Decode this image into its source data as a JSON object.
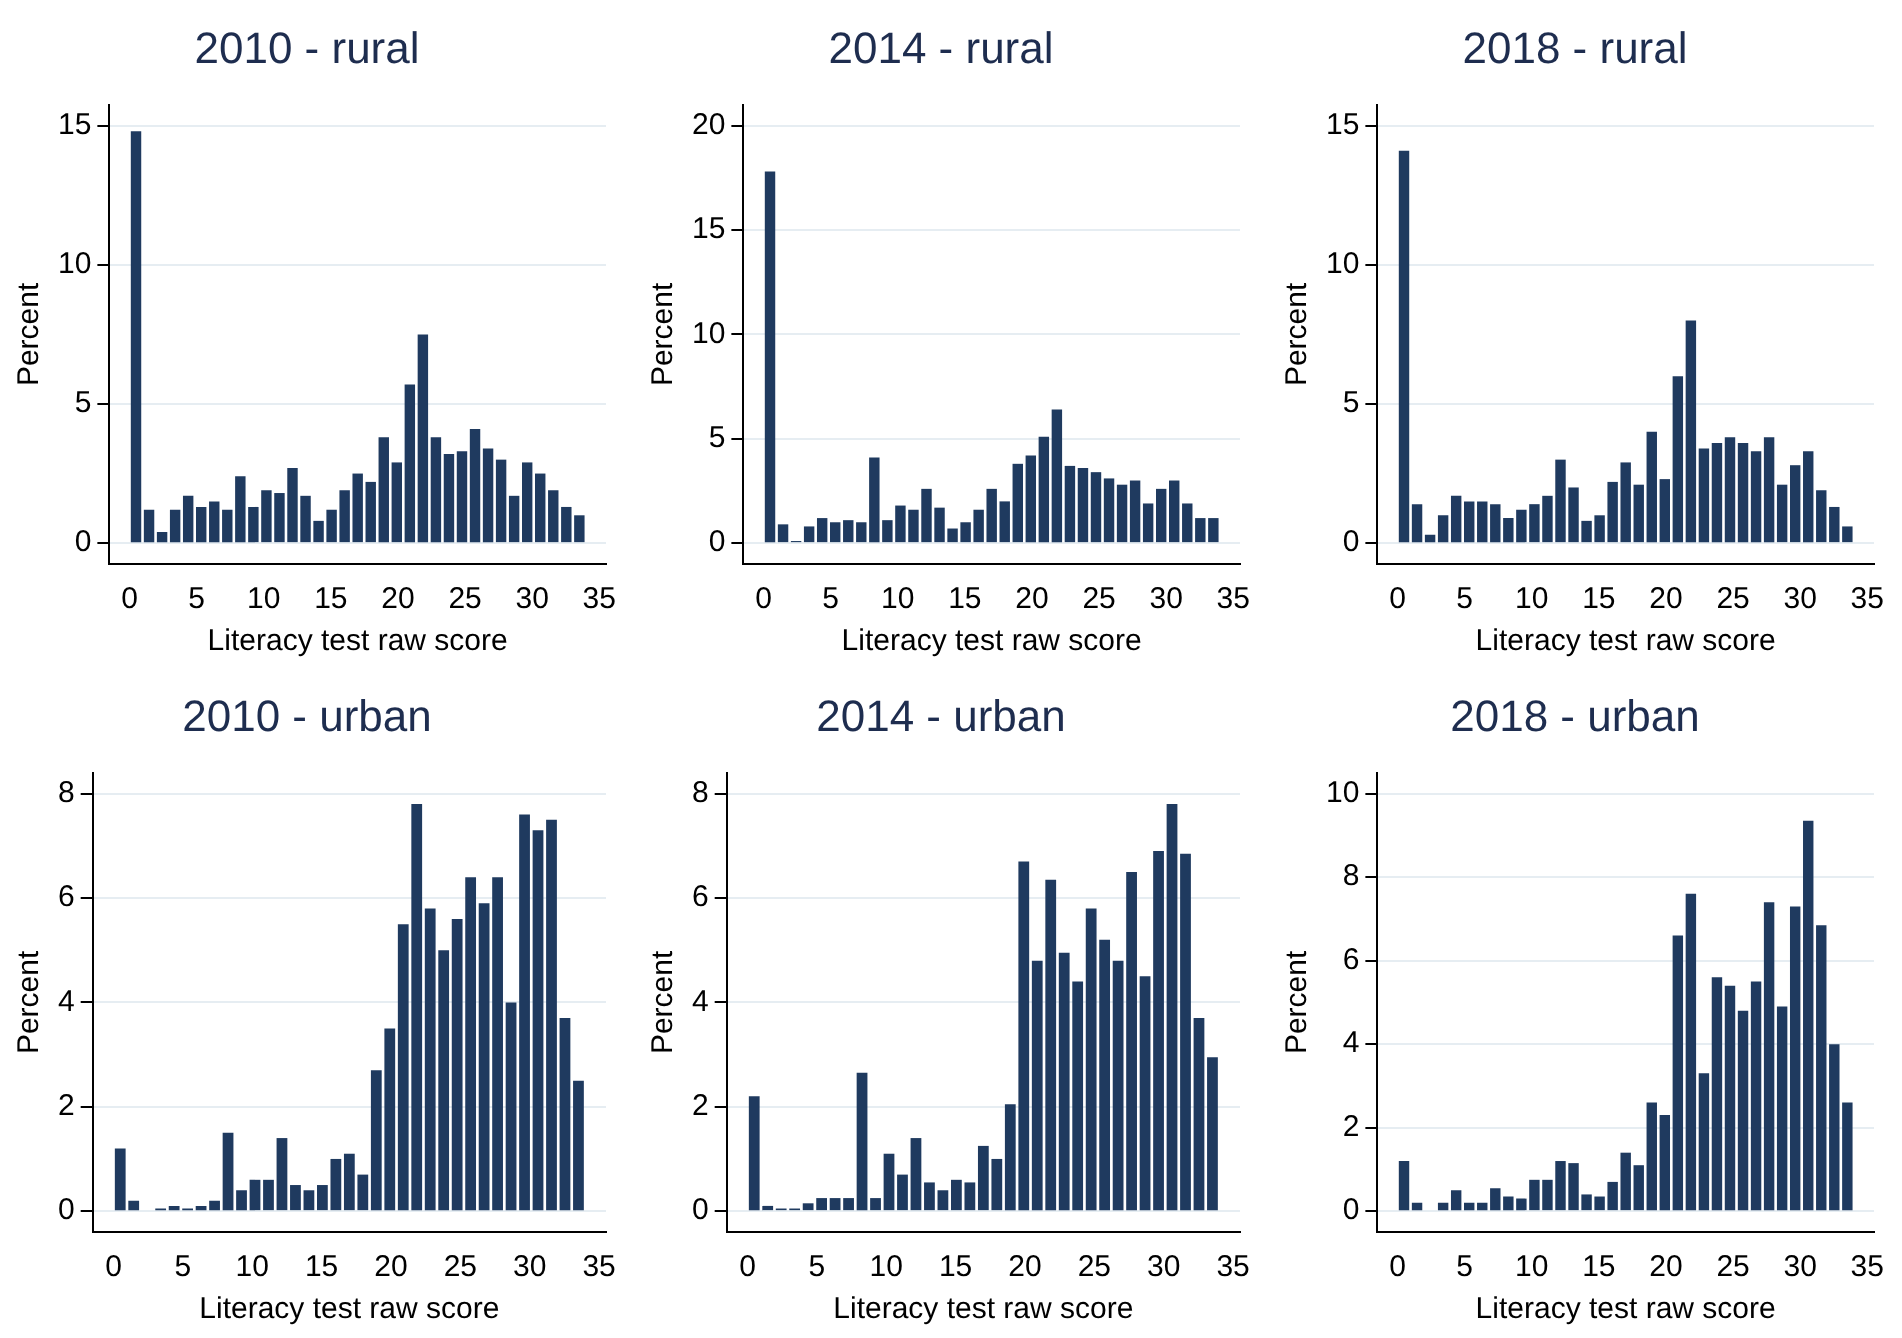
{
  "chart_data": [
    {
      "type": "histogram",
      "title": "2010 - rural",
      "xlabel": "Literacy test raw score",
      "ylabel": "Percent",
      "color": "#1f3a5f",
      "grid": "y",
      "legend": false,
      "bins": [
        0,
        0.971,
        1.943,
        2.914,
        3.886,
        4.857,
        5.829,
        6.8,
        7.771,
        8.743,
        9.714,
        10.686,
        11.657,
        12.629,
        13.6,
        14.571,
        15.543,
        16.514,
        17.486,
        18.457,
        19.429,
        20.4,
        21.371,
        22.343,
        23.314,
        24.286,
        25.257,
        26.229,
        27.2,
        28.171,
        29.143,
        30.114,
        31.086,
        32.057,
        33.029,
        34
      ],
      "values": [
        14.8,
        1.2,
        0.4,
        1.2,
        1.7,
        1.3,
        1.5,
        1.2,
        2.4,
        1.3,
        1.9,
        1.8,
        2.7,
        1.7,
        0.8,
        1.2,
        1.9,
        2.5,
        2.2,
        3.8,
        2.9,
        5.7,
        7.5,
        3.8,
        3.2,
        3.3,
        4.1,
        3.4,
        3.0,
        1.7,
        2.9,
        2.5,
        1.9,
        1.3,
        1.0
      ],
      "xlim": [
        -1.5,
        35.5
      ],
      "xticks": [
        0,
        5,
        10,
        15,
        20,
        25,
        30,
        35
      ],
      "ylim": [
        -0.75,
        15.75
      ],
      "yticks": [
        0,
        5,
        10,
        15
      ]
    },
    {
      "type": "histogram",
      "title": "2014 - rural",
      "xlabel": "Literacy test raw score",
      "ylabel": "Percent",
      "color": "#1f3a5f",
      "grid": "y",
      "legend": false,
      "bins": [
        0,
        0.971,
        1.943,
        2.914,
        3.886,
        4.857,
        5.829,
        6.8,
        7.771,
        8.743,
        9.714,
        10.686,
        11.657,
        12.629,
        13.6,
        14.571,
        15.543,
        16.514,
        17.486,
        18.457,
        19.429,
        20.4,
        21.371,
        22.343,
        23.314,
        24.286,
        25.257,
        26.229,
        27.2,
        28.171,
        29.143,
        30.114,
        31.086,
        32.057,
        33.029,
        34
      ],
      "values": [
        17.8,
        0.9,
        0.1,
        0.8,
        1.2,
        1.0,
        1.1,
        1.0,
        4.1,
        1.1,
        1.8,
        1.6,
        2.6,
        1.7,
        0.7,
        1.0,
        1.6,
        2.6,
        2.0,
        3.8,
        4.2,
        5.1,
        6.4,
        3.7,
        3.6,
        3.4,
        3.1,
        2.8,
        3.0,
        1.9,
        2.6,
        3.0,
        1.9,
        1.2,
        1.2
      ],
      "xlim": [
        -1.5,
        35.5
      ],
      "xticks": [
        0,
        5,
        10,
        15,
        20,
        25,
        30,
        35
      ],
      "ylim": [
        -1,
        21
      ],
      "yticks": [
        0,
        5,
        10,
        15,
        20
      ]
    },
    {
      "type": "histogram",
      "title": "2018 - rural",
      "xlabel": "Literacy test raw score",
      "ylabel": "Percent",
      "color": "#1f3a5f",
      "grid": "y",
      "legend": false,
      "bins": [
        0,
        0.971,
        1.943,
        2.914,
        3.886,
        4.857,
        5.829,
        6.8,
        7.771,
        8.743,
        9.714,
        10.686,
        11.657,
        12.629,
        13.6,
        14.571,
        15.543,
        16.514,
        17.486,
        18.457,
        19.429,
        20.4,
        21.371,
        22.343,
        23.314,
        24.286,
        25.257,
        26.229,
        27.2,
        28.171,
        29.143,
        30.114,
        31.086,
        32.057,
        33.029,
        34
      ],
      "values": [
        14.1,
        1.4,
        0.3,
        1.0,
        1.7,
        1.5,
        1.5,
        1.4,
        0.9,
        1.2,
        1.4,
        1.7,
        3.0,
        2.0,
        0.8,
        1.0,
        2.2,
        2.9,
        2.1,
        4.0,
        2.3,
        6.0,
        8.0,
        3.4,
        3.6,
        3.8,
        3.6,
        3.3,
        3.8,
        2.1,
        2.8,
        3.3,
        1.9,
        1.3,
        0.6
      ],
      "xlim": [
        -1.5,
        35.5
      ],
      "xticks": [
        0,
        5,
        10,
        15,
        20,
        25,
        30,
        35
      ],
      "ylim": [
        -0.75,
        15.75
      ],
      "yticks": [
        0,
        5,
        10,
        15
      ]
    },
    {
      "type": "histogram",
      "title": "2010 - urban",
      "xlabel": "Literacy test raw score",
      "ylabel": "Percent",
      "color": "#1f3a5f",
      "grid": "y",
      "legend": false,
      "bins": [
        0,
        0.971,
        1.943,
        2.914,
        3.886,
        4.857,
        5.829,
        6.8,
        7.771,
        8.743,
        9.714,
        10.686,
        11.657,
        12.629,
        13.6,
        14.571,
        15.543,
        16.514,
        17.486,
        18.457,
        19.429,
        20.4,
        21.371,
        22.343,
        23.314,
        24.286,
        25.257,
        26.229,
        27.2,
        28.171,
        29.143,
        30.114,
        31.086,
        32.057,
        33.029,
        34
      ],
      "values": [
        1.2,
        0.2,
        0,
        0.05,
        0.1,
        0.05,
        0.1,
        0.2,
        1.5,
        0.4,
        0.6,
        0.6,
        1.4,
        0.5,
        0.4,
        0.5,
        1.0,
        1.1,
        0.7,
        2.7,
        3.5,
        5.5,
        7.8,
        5.8,
        5.0,
        5.6,
        6.4,
        5.9,
        6.4,
        4.0,
        7.6,
        7.3,
        7.5,
        3.7,
        2.5
      ],
      "xlim": [
        -1.5,
        35.5
      ],
      "xticks": [
        0,
        5,
        10,
        15,
        20,
        25,
        30,
        35
      ],
      "ylim": [
        -0.4,
        8.4
      ],
      "yticks": [
        0,
        2,
        4,
        6,
        8
      ]
    },
    {
      "type": "histogram",
      "title": "2014 - urban",
      "xlabel": "Literacy test raw score",
      "ylabel": "Percent",
      "color": "#1f3a5f",
      "grid": "y",
      "legend": false,
      "bins": [
        0,
        0.971,
        1.943,
        2.914,
        3.886,
        4.857,
        5.829,
        6.8,
        7.771,
        8.743,
        9.714,
        10.686,
        11.657,
        12.629,
        13.6,
        14.571,
        15.543,
        16.514,
        17.486,
        18.457,
        19.429,
        20.4,
        21.371,
        22.343,
        23.314,
        24.286,
        25.257,
        26.229,
        27.2,
        28.171,
        29.143,
        30.114,
        31.086,
        32.057,
        33.029,
        34
      ],
      "values": [
        2.2,
        0.1,
        0.05,
        0.05,
        0.15,
        0.25,
        0.25,
        0.25,
        2.65,
        0.25,
        1.1,
        0.7,
        1.4,
        0.55,
        0.4,
        0.6,
        0.55,
        1.25,
        1.0,
        2.05,
        6.7,
        4.8,
        6.35,
        4.95,
        4.4,
        5.8,
        5.2,
        4.8,
        6.5,
        4.5,
        6.9,
        7.8,
        6.85,
        3.7,
        2.95
      ],
      "xlim": [
        -1.5,
        35.5
      ],
      "xticks": [
        0,
        5,
        10,
        15,
        20,
        25,
        30,
        35
      ],
      "ylim": [
        -0.4,
        8.4
      ],
      "yticks": [
        0,
        2,
        4,
        6,
        8
      ]
    },
    {
      "type": "histogram",
      "title": "2018 - urban",
      "xlabel": "Literacy test raw score",
      "ylabel": "Percent",
      "color": "#1f3a5f",
      "grid": "y",
      "legend": false,
      "bins": [
        0,
        0.971,
        1.943,
        2.914,
        3.886,
        4.857,
        5.829,
        6.8,
        7.771,
        8.743,
        9.714,
        10.686,
        11.657,
        12.629,
        13.6,
        14.571,
        15.543,
        16.514,
        17.486,
        18.457,
        19.429,
        20.4,
        21.371,
        22.343,
        23.314,
        24.286,
        25.257,
        26.229,
        27.2,
        28.171,
        29.143,
        30.114,
        31.086,
        32.057,
        33.029,
        34
      ],
      "values": [
        1.2,
        0.2,
        0,
        0.2,
        0.5,
        0.2,
        0.2,
        0.55,
        0.35,
        0.3,
        0.75,
        0.75,
        1.2,
        1.15,
        0.4,
        0.35,
        0.7,
        1.4,
        1.1,
        2.6,
        2.3,
        6.6,
        7.6,
        3.3,
        5.6,
        5.4,
        4.8,
        5.5,
        7.4,
        4.9,
        7.3,
        9.35,
        6.85,
        4.0,
        2.6
      ],
      "xlim": [
        -1.5,
        35.5
      ],
      "xticks": [
        0,
        5,
        10,
        15,
        20,
        25,
        30,
        35
      ],
      "ylim": [
        -0.5,
        10.5
      ],
      "yticks": [
        0,
        2,
        4,
        6,
        8,
        10
      ]
    }
  ]
}
